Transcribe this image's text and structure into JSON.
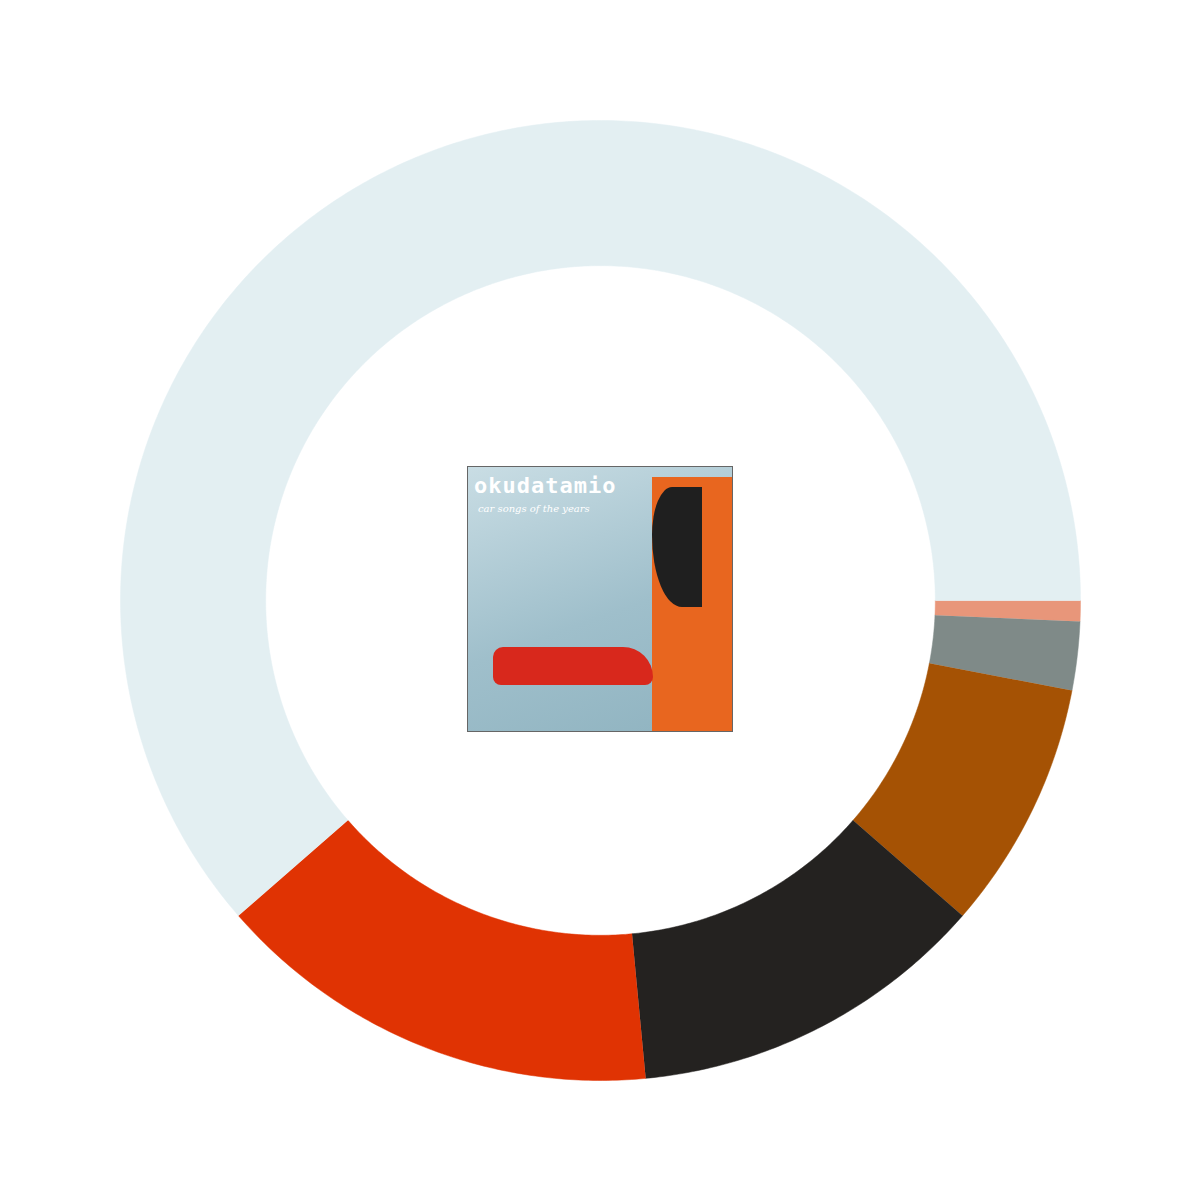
{
  "chart_data": {
    "type": "donut",
    "values": [
      0.7,
      2.3,
      8.4,
      12.1,
      15.1,
      61.4
    ],
    "colors": [
      "#e8967a",
      "#7f8a88",
      "#a55204",
      "#242220",
      "#e03303",
      "#e3eff2"
    ],
    "annotations": [
      "okudatamio",
      "car songs of the years"
    ],
    "tick_labels": false
  }
}
